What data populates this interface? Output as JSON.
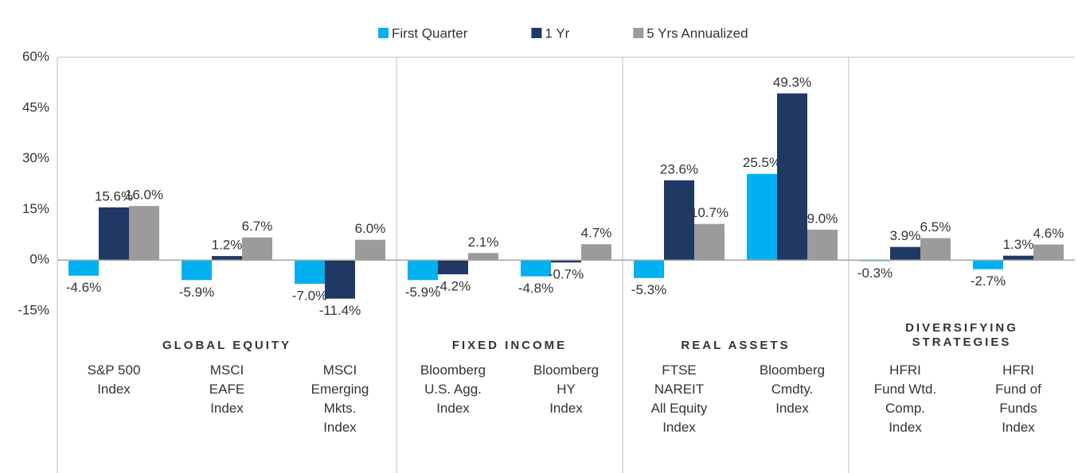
{
  "chart_data": {
    "type": "bar",
    "groups": [
      {
        "name": "GLOBAL EQUITY",
        "categories": [
          "S&P 500\nIndex",
          "MSCI\nEAFE\nIndex",
          "MSCI\nEmerging\nMkts.\nIndex"
        ]
      },
      {
        "name": "FIXED INCOME",
        "categories": [
          "Bloomberg\nU.S. Agg.\nIndex",
          "Bloomberg\nHY\nIndex"
        ]
      },
      {
        "name": "REAL ASSETS",
        "categories": [
          "FTSE\nNAREIT\nAll Equity\nIndex",
          "Bloomberg\nCmdty.\nIndex"
        ]
      },
      {
        "name": "DIVERSIFYING\nSTRATEGIES",
        "categories": [
          "HFRI\nFund Wtd.\nComp.\nIndex",
          "HFRI\nFund of\nFunds\nIndex"
        ]
      }
    ],
    "series": [
      {
        "name": "First Quarter",
        "color": "#00b0f0",
        "values": [
          -4.6,
          -5.9,
          -7.0,
          -5.9,
          -4.8,
          -5.3,
          25.5,
          -0.3,
          -2.7
        ],
        "value_labels": [
          "-4.6%",
          "-5.9%",
          "-7.0%",
          "-5.9%",
          "-4.8%",
          "-5.3%",
          "25.5%",
          "-0.3%",
          "-2.7%"
        ]
      },
      {
        "name": "1 Yr",
        "color": "#1f3864",
        "values": [
          15.6,
          1.2,
          -11.4,
          -4.2,
          -0.7,
          23.6,
          49.3,
          3.9,
          1.3
        ],
        "value_labels": [
          "15.6%",
          "1.2%",
          "-11.4%",
          "-4.2%",
          "-0.7%",
          "23.6%",
          "49.3%",
          "3.9%",
          "1.3%"
        ]
      },
      {
        "name": "5 Yrs Annualized",
        "color": "#9b9b9b",
        "values": [
          16.0,
          6.7,
          6.0,
          2.1,
          4.7,
          10.7,
          9.0,
          6.5,
          4.6
        ],
        "value_labels": [
          "16.0%",
          "6.7%",
          "6.0%",
          "2.1%",
          "4.7%",
          "10.7%",
          "9.0%",
          "6.5%",
          "4.6%"
        ]
      }
    ],
    "ylim": [
      -15,
      60
    ],
    "yticks": [
      {
        "value": -15,
        "label": "-15%"
      },
      {
        "value": 0,
        "label": "0%"
      },
      {
        "value": 15,
        "label": "15%"
      },
      {
        "value": 30,
        "label": "30%"
      },
      {
        "value": 45,
        "label": "45%"
      },
      {
        "value": 60,
        "label": "60%"
      }
    ],
    "grid": false,
    "legend": "top"
  }
}
